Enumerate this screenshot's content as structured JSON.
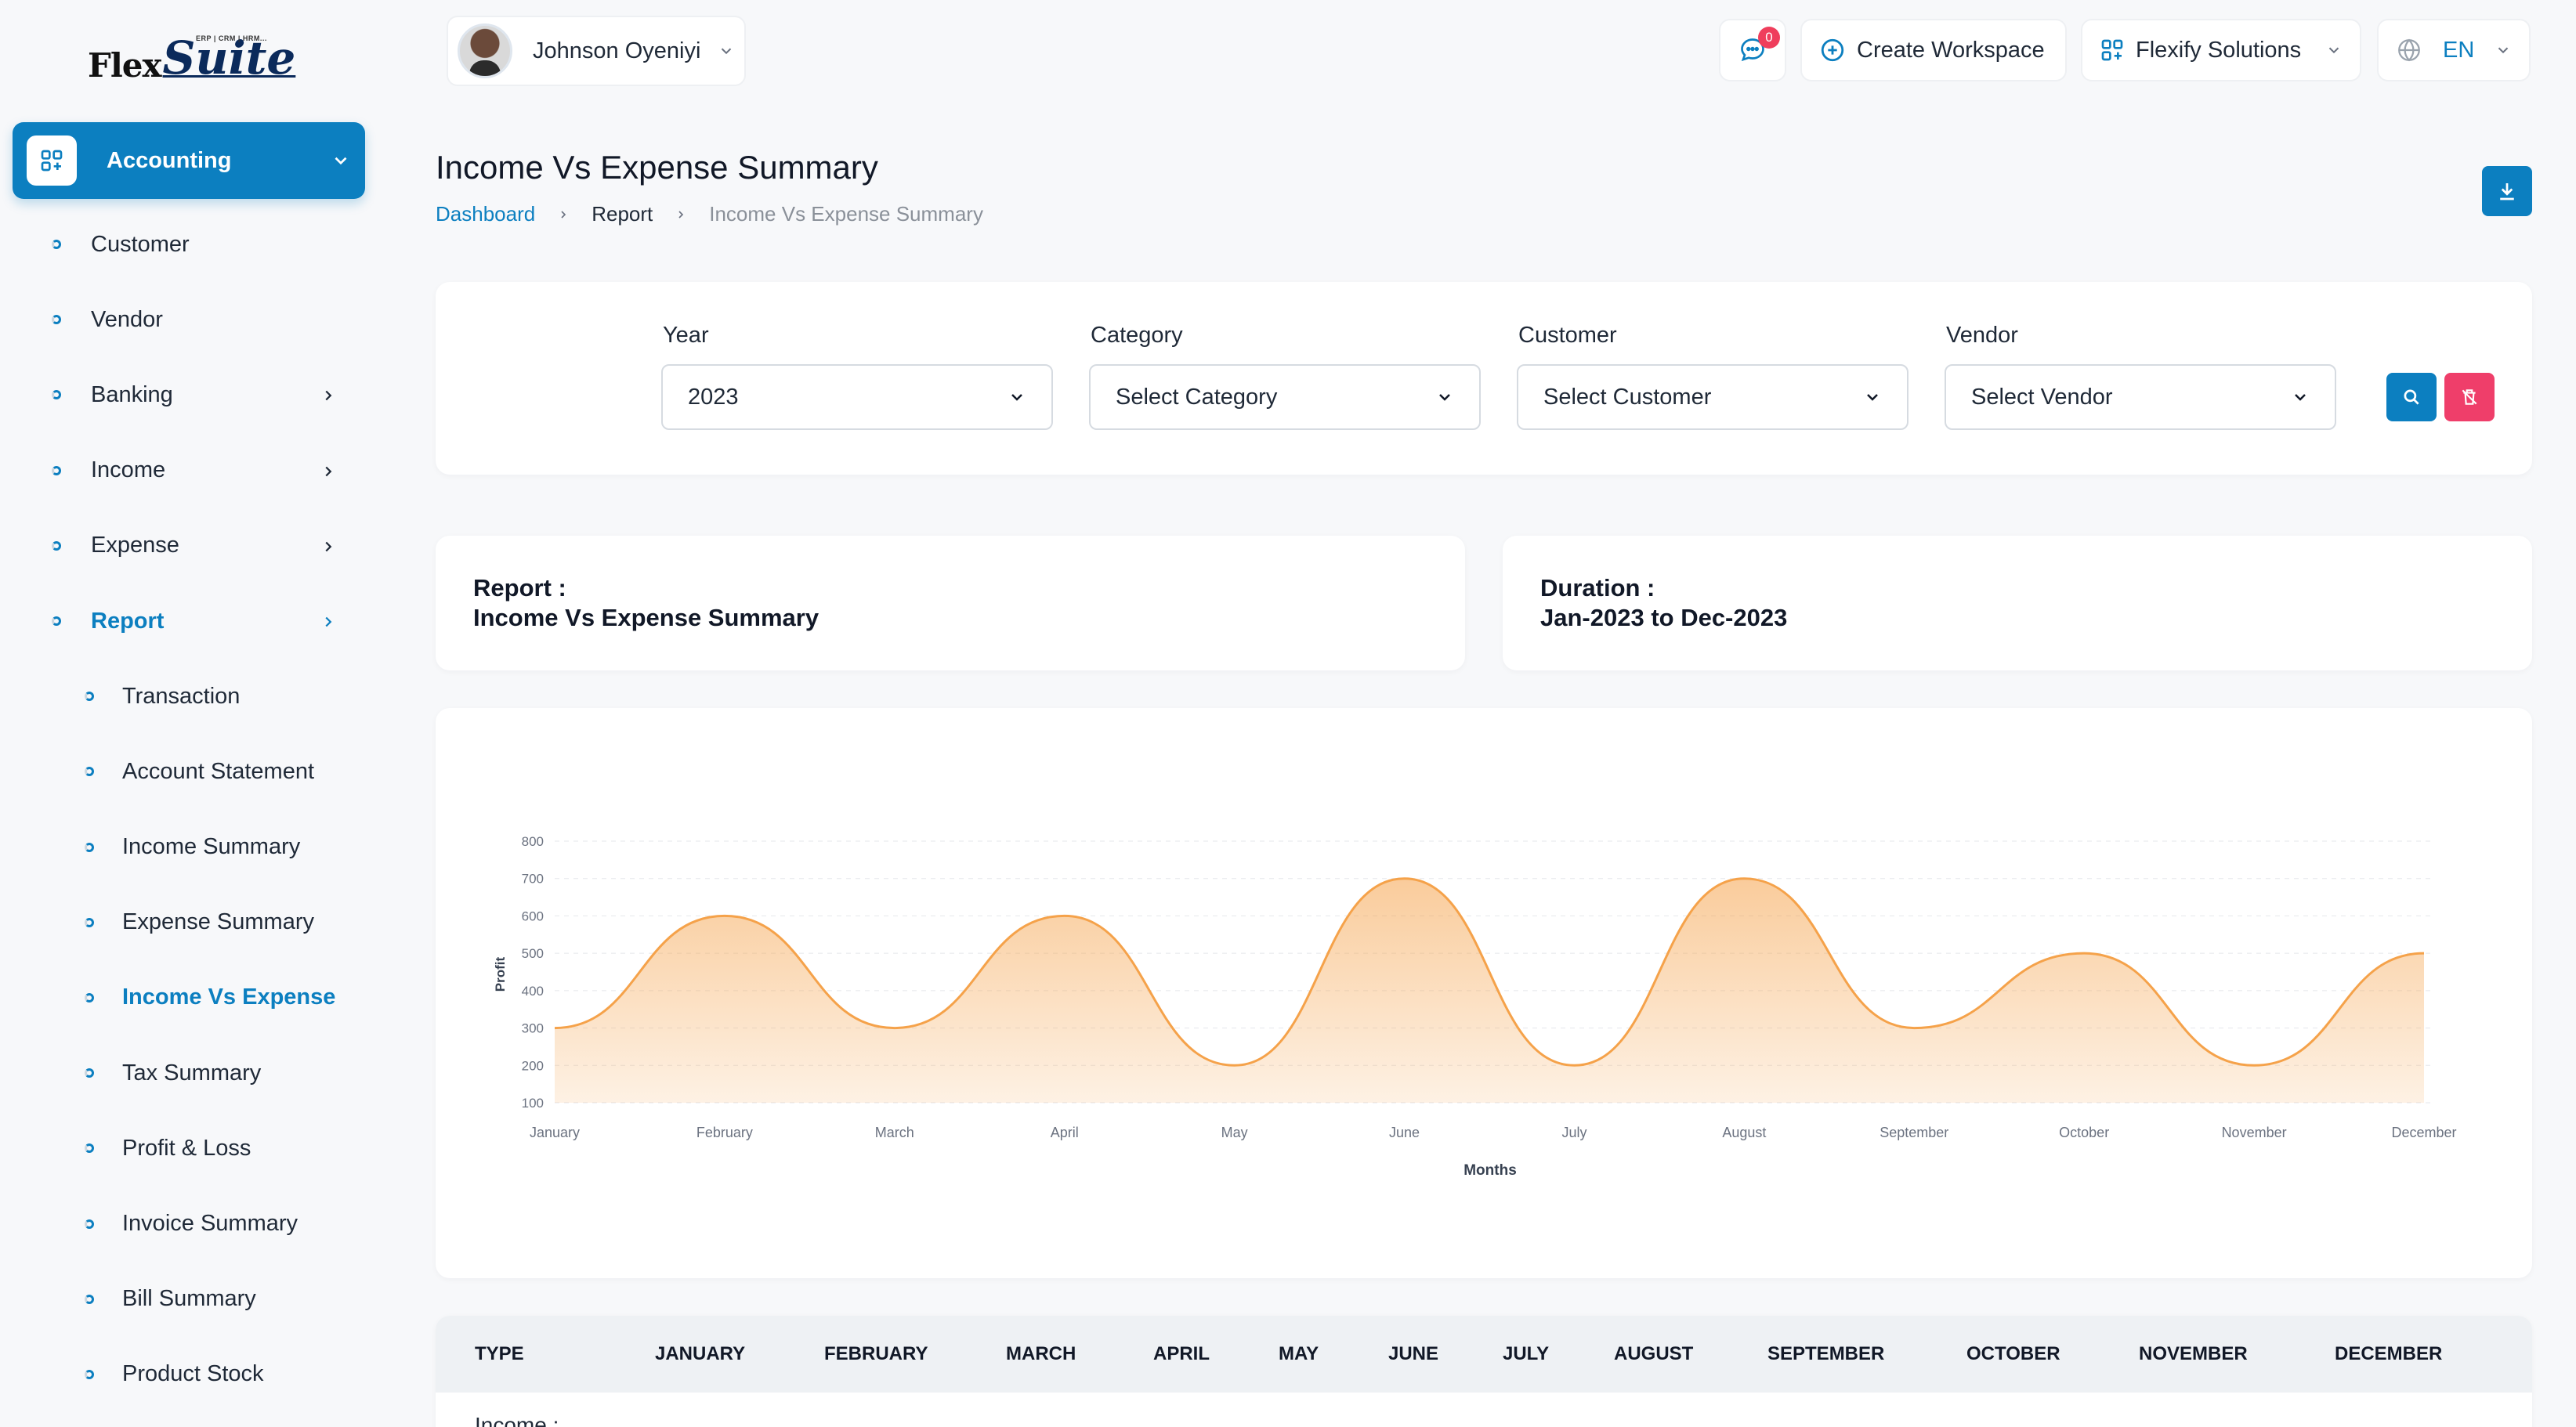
{
  "brand": {
    "flex": "Flex",
    "suite": "Suite",
    "tagline": "ERP | CRM | HRM..."
  },
  "sidebar": {
    "module": "Accounting",
    "items": [
      {
        "label": "Customer"
      },
      {
        "label": "Vendor"
      },
      {
        "label": "Banking"
      },
      {
        "label": "Income"
      },
      {
        "label": "Expense"
      },
      {
        "label": "Report"
      },
      {
        "label": "Transaction"
      },
      {
        "label": "Account Statement"
      },
      {
        "label": "Income Summary"
      },
      {
        "label": "Expense Summary"
      },
      {
        "label": "Income Vs Expense"
      },
      {
        "label": "Tax Summary"
      },
      {
        "label": "Profit & Loss"
      },
      {
        "label": "Invoice Summary"
      },
      {
        "label": "Bill Summary"
      },
      {
        "label": "Product Stock"
      }
    ]
  },
  "topbar": {
    "user_name": "Johnson Oyeniyi",
    "message_count": "0",
    "create_workspace": "Create Workspace",
    "company": "Flexify Solutions",
    "language": "EN"
  },
  "page": {
    "title": "Income Vs Expense Summary",
    "breadcrumb": [
      "Dashboard",
      "Report",
      "Income Vs Expense Summary"
    ]
  },
  "filters": {
    "year": {
      "label": "Year",
      "value": "2023"
    },
    "category": {
      "label": "Category",
      "value": "Select Category"
    },
    "customer": {
      "label": "Customer",
      "value": "Select Customer"
    },
    "vendor": {
      "label": "Vendor",
      "value": "Select Vendor"
    }
  },
  "info": {
    "report_label": "Report :",
    "report_value": "Income Vs Expense Summary",
    "duration_label": "Duration :",
    "duration_value": "Jan-2023 to Dec-2023"
  },
  "colors": {
    "accent": "#0c7fc0",
    "danger": "#ef3e6a",
    "series": "#f5a24a"
  },
  "chart_data": {
    "type": "area",
    "categories": [
      "January",
      "February",
      "March",
      "April",
      "May",
      "June",
      "July",
      "August",
      "September",
      "October",
      "November",
      "December"
    ],
    "series": [
      {
        "values": [
          300,
          600,
          300,
          600,
          200,
          700,
          200,
          700,
          300,
          500,
          200,
          500
        ]
      }
    ],
    "xlabel": "Months",
    "ylabel": "Profit",
    "ylim": [
      100,
      800
    ],
    "yticks": [
      800,
      700,
      600,
      500,
      400,
      300,
      200,
      100
    ],
    "grid": true
  },
  "table": {
    "headers": [
      "TYPE",
      "JANUARY",
      "FEBRUARY",
      "MARCH",
      "APRIL",
      "MAY",
      "JUNE",
      "JULY",
      "AUGUST",
      "SEPTEMBER",
      "OCTOBER",
      "NOVEMBER",
      "DECEMBER"
    ],
    "first_row_label": "Income :"
  }
}
